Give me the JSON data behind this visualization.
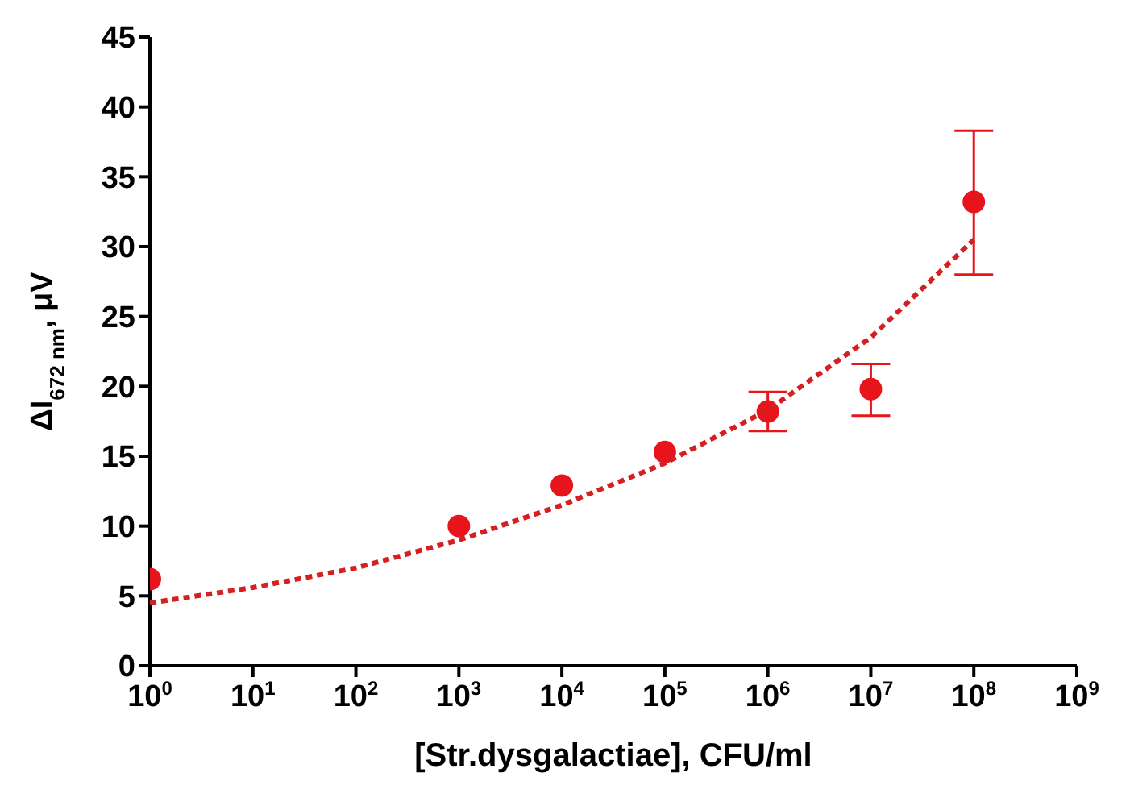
{
  "chart_data": {
    "type": "scatter",
    "xlabel": "[Str.dysgalactiae], CFU/ml",
    "ylabel": "ΔI$_{672 nm}$, μV",
    "log": "x",
    "xlim": [
      1,
      1000000000
    ],
    "xticks": [
      {
        "value": 1,
        "label": "10$^{0}$"
      },
      {
        "value": 10,
        "label": "10$^{1}$"
      },
      {
        "value": 100,
        "label": "10$^{2}$"
      },
      {
        "value": 1000,
        "label": "10$^{3}$"
      },
      {
        "value": 10000,
        "label": "10$^{4}$"
      },
      {
        "value": 100000,
        "label": "10$^{5}$"
      },
      {
        "value": 1000000,
        "label": "10$^{6}$"
      },
      {
        "value": 10000000,
        "label": "10$^{7}$"
      },
      {
        "value": 100000000,
        "label": "10$^{8}$"
      },
      {
        "value": 1000000000,
        "label": "10$^{9}$"
      }
    ],
    "ylim": [
      0,
      45
    ],
    "yticks": [
      0,
      5,
      10,
      15,
      20,
      25,
      30,
      35,
      40,
      45
    ],
    "series": [
      {
        "color": "#e8141c",
        "marker": "circle",
        "x": [
          1,
          1000,
          10000,
          100000,
          1000000,
          10000000,
          100000000
        ],
        "values": [
          6.2,
          10,
          12.9,
          15.3,
          18.2,
          19.8,
          33.2
        ],
        "errors": [
          null,
          null,
          null,
          null,
          [
            16.8,
            19.6
          ],
          [
            17.9,
            21.6
          ],
          [
            28,
            38.3
          ]
        ]
      },
      {
        "type": "line",
        "color": "#d42020",
        "marker": "none",
        "line_style": "dotted",
        "x": [
          1,
          10,
          100,
          1000,
          10000,
          100000,
          1000000,
          10000000,
          100000000
        ],
        "values": [
          4.5,
          5.6,
          7,
          9,
          11.5,
          14.5,
          18.3,
          23.5,
          30.5
        ]
      }
    ]
  }
}
